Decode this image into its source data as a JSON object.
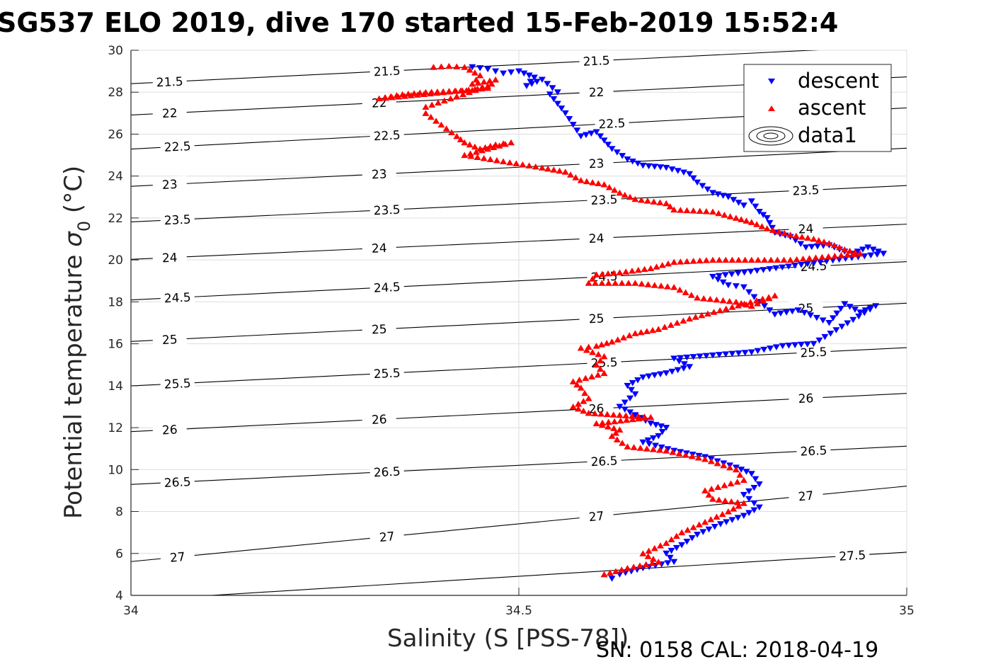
{
  "chart_data": {
    "type": "scatter",
    "title": "SG537 ELO 2019, dive 170 started 15-Feb-2019 15:52:4",
    "xlabel": "Salinity (S [PSS-78])",
    "ylabel_main": "Potential temperature ",
    "ylabel_sigma": "σ",
    "ylabel_sub": "0",
    "ylabel_unit": " (°C)",
    "footer": "SN: 0158  CAL: 2018-04-19",
    "xlim": [
      34,
      35
    ],
    "ylim": [
      4,
      30
    ],
    "grid": true,
    "xticks": [
      34,
      34.5,
      35
    ],
    "xtick_labels": [
      "34",
      "34.5",
      "35"
    ],
    "yticks": [
      4,
      6,
      8,
      10,
      12,
      14,
      16,
      18,
      20,
      22,
      24,
      26,
      28,
      30
    ],
    "ytick_labels": [
      "4",
      "6",
      "8",
      "10",
      "12",
      "14",
      "16",
      "18",
      "20",
      "22",
      "24",
      "26",
      "28",
      "30"
    ],
    "legend": {
      "position": "top-right",
      "entries": [
        {
          "label": "descent",
          "marker": "triangle-down",
          "color": "#0000ff"
        },
        {
          "label": "ascent",
          "marker": "triangle-up",
          "color": "#ff0000"
        },
        {
          "label": "data1",
          "marker": "contour",
          "color": "#000000"
        }
      ]
    },
    "density_contours": {
      "levels": [
        21.5,
        22,
        22.5,
        23,
        23.5,
        24,
        24.5,
        25,
        25.5,
        26,
        26.5,
        27,
        27.5
      ],
      "labels": [
        "21.5",
        "22",
        "22.5",
        "23",
        "23.5",
        "24",
        "24.5",
        "25",
        "25.5",
        "26",
        "26.5",
        "27",
        "27.5"
      ],
      "label_positions": [
        {
          "level": "21.5",
          "at": [
            [
              34.05,
              28.5
            ],
            [
              34.33,
              29.0
            ],
            [
              34.6,
              29.5
            ]
          ]
        },
        {
          "level": "22",
          "at": [
            [
              34.05,
              27.0
            ],
            [
              34.32,
              27.5
            ],
            [
              34.6,
              28.0
            ]
          ]
        },
        {
          "level": "22.5",
          "at": [
            [
              34.06,
              25.4
            ],
            [
              34.33,
              25.95
            ],
            [
              34.62,
              26.5
            ]
          ]
        },
        {
          "level": "23",
          "at": [
            [
              34.05,
              23.6
            ],
            [
              34.32,
              24.1
            ],
            [
              34.6,
              24.6
            ]
          ]
        },
        {
          "level": "23.5",
          "at": [
            [
              34.06,
              21.9
            ],
            [
              34.33,
              22.4
            ],
            [
              34.61,
              22.9
            ],
            [
              34.87,
              23.3
            ]
          ]
        },
        {
          "level": "24",
          "at": [
            [
              34.05,
              20.1
            ],
            [
              34.32,
              20.6
            ],
            [
              34.6,
              21.0
            ],
            [
              34.87,
              21.5
            ]
          ]
        },
        {
          "level": "24.5",
          "at": [
            [
              34.06,
              18.2
            ],
            [
              34.33,
              18.7
            ],
            [
              34.61,
              19.2
            ],
            [
              34.88,
              19.7
            ]
          ]
        },
        {
          "level": "25",
          "at": [
            [
              34.05,
              16.2
            ],
            [
              34.32,
              16.7
            ],
            [
              34.6,
              17.2
            ],
            [
              34.87,
              17.7
            ]
          ]
        },
        {
          "level": "25.5",
          "at": [
            [
              34.06,
              14.1
            ],
            [
              34.33,
              14.6
            ],
            [
              34.61,
              15.1
            ],
            [
              34.88,
              15.6
            ]
          ]
        },
        {
          "level": "26",
          "at": [
            [
              34.05,
              11.9
            ],
            [
              34.32,
              12.4
            ],
            [
              34.6,
              12.9
            ],
            [
              34.87,
              13.4
            ]
          ]
        },
        {
          "level": "26.5",
          "at": [
            [
              34.06,
              9.4
            ],
            [
              34.33,
              9.9
            ],
            [
              34.61,
              10.4
            ],
            [
              34.88,
              10.9
            ]
          ]
        },
        {
          "level": "27",
          "at": [
            [
              34.06,
              4.4
            ],
            [
              34.33,
              6.8
            ],
            [
              34.6,
              7.3
            ],
            [
              34.87,
              8.1
            ]
          ]
        },
        {
          "level": "27.5",
          "at": [
            [
              34.93,
              5.9
            ]
          ]
        }
      ]
    },
    "series": [
      {
        "name": "descent",
        "marker": "triangle-down",
        "color": "#0000ff",
        "points": [
          [
            34.44,
            29.2
          ],
          [
            34.46,
            29.1
          ],
          [
            34.47,
            29.0
          ],
          [
            34.48,
            28.9
          ],
          [
            34.5,
            29.0
          ],
          [
            34.52,
            28.7
          ],
          [
            34.51,
            28.3
          ],
          [
            34.53,
            28.6
          ],
          [
            34.55,
            28.0
          ],
          [
            34.54,
            27.9
          ],
          [
            34.56,
            27.0
          ],
          [
            34.58,
            25.9
          ],
          [
            34.6,
            26.1
          ],
          [
            34.62,
            25.3
          ],
          [
            34.64,
            24.8
          ],
          [
            34.66,
            24.5
          ],
          [
            34.69,
            24.4
          ],
          [
            34.72,
            24.1
          ],
          [
            34.73,
            23.7
          ],
          [
            34.75,
            23.2
          ],
          [
            34.77,
            23.0
          ],
          [
            34.79,
            22.6
          ],
          [
            34.8,
            22.8
          ],
          [
            34.81,
            22.3
          ],
          [
            34.82,
            22.0
          ],
          [
            34.83,
            21.3
          ],
          [
            34.85,
            21.1
          ],
          [
            34.87,
            20.6
          ],
          [
            34.9,
            20.7
          ],
          [
            34.92,
            20.4
          ],
          [
            34.93,
            20.3
          ],
          [
            34.95,
            20.6
          ],
          [
            34.97,
            20.3
          ],
          [
            34.75,
            19.2
          ],
          [
            34.77,
            18.8
          ],
          [
            34.79,
            18.7
          ],
          [
            34.81,
            18.0
          ],
          [
            34.83,
            17.4
          ],
          [
            34.86,
            17.6
          ],
          [
            34.9,
            17.0
          ],
          [
            34.92,
            17.9
          ],
          [
            34.94,
            17.5
          ],
          [
            34.96,
            17.8
          ],
          [
            34.88,
            16.0
          ],
          [
            34.84,
            15.9
          ],
          [
            34.8,
            15.6
          ],
          [
            34.7,
            15.3
          ],
          [
            34.72,
            14.9
          ],
          [
            34.69,
            14.6
          ],
          [
            34.66,
            14.4
          ],
          [
            34.64,
            14.0
          ],
          [
            34.65,
            13.6
          ],
          [
            34.63,
            13.0
          ],
          [
            34.65,
            12.6
          ],
          [
            34.67,
            12.2
          ],
          [
            34.69,
            12.0
          ],
          [
            34.68,
            11.6
          ],
          [
            34.66,
            11.3
          ],
          [
            34.7,
            10.9
          ],
          [
            34.74,
            10.6
          ],
          [
            34.78,
            10.1
          ],
          [
            34.8,
            9.8
          ],
          [
            34.81,
            9.3
          ],
          [
            34.79,
            8.8
          ],
          [
            34.81,
            8.2
          ],
          [
            34.79,
            7.8
          ],
          [
            34.76,
            7.4
          ],
          [
            34.73,
            6.9
          ],
          [
            34.71,
            6.4
          ],
          [
            34.69,
            6.0
          ],
          [
            34.7,
            5.6
          ],
          [
            34.66,
            5.3
          ],
          [
            34.63,
            5.0
          ],
          [
            34.62,
            4.8
          ]
        ]
      },
      {
        "name": "ascent",
        "marker": "triangle-up",
        "color": "#ff0000",
        "points": [
          [
            34.39,
            29.2
          ],
          [
            34.41,
            29.25
          ],
          [
            34.43,
            29.2
          ],
          [
            34.45,
            28.8
          ],
          [
            34.44,
            28.4
          ],
          [
            34.47,
            28.6
          ],
          [
            34.46,
            28.2
          ],
          [
            34.32,
            27.7
          ],
          [
            34.35,
            27.9
          ],
          [
            34.38,
            28.0
          ],
          [
            34.41,
            28.05
          ],
          [
            34.44,
            28.1
          ],
          [
            34.46,
            28.3
          ],
          [
            34.38,
            27.3
          ],
          [
            34.38,
            27.0
          ],
          [
            34.42,
            25.9
          ],
          [
            34.43,
            25.6
          ],
          [
            34.45,
            25.3
          ],
          [
            34.47,
            25.5
          ],
          [
            34.49,
            25.6
          ],
          [
            34.43,
            25.0
          ],
          [
            34.53,
            24.4
          ],
          [
            34.56,
            24.2
          ],
          [
            34.58,
            23.8
          ],
          [
            34.61,
            23.6
          ],
          [
            34.63,
            23.2
          ],
          [
            34.65,
            22.9
          ],
          [
            34.69,
            22.7
          ],
          [
            34.7,
            22.4
          ],
          [
            34.75,
            22.3
          ],
          [
            34.78,
            22.0
          ],
          [
            34.8,
            21.8
          ],
          [
            34.82,
            21.5
          ],
          [
            34.85,
            21.2
          ],
          [
            34.88,
            21.0
          ],
          [
            34.9,
            20.8
          ],
          [
            34.92,
            20.5
          ],
          [
            34.94,
            20.3
          ],
          [
            34.85,
            20.0
          ],
          [
            34.8,
            20.0
          ],
          [
            34.75,
            20.0
          ],
          [
            34.7,
            19.9
          ],
          [
            34.67,
            19.6
          ],
          [
            34.63,
            19.4
          ],
          [
            34.6,
            19.3
          ],
          [
            34.59,
            18.9
          ],
          [
            34.65,
            18.9
          ],
          [
            34.7,
            18.7
          ],
          [
            34.73,
            18.2
          ],
          [
            34.78,
            18.0
          ],
          [
            34.8,
            17.8
          ],
          [
            34.83,
            18.3
          ],
          [
            34.72,
            17.2
          ],
          [
            34.68,
            16.7
          ],
          [
            34.65,
            16.5
          ],
          [
            34.62,
            16.1
          ],
          [
            34.6,
            15.9
          ],
          [
            34.58,
            15.8
          ],
          [
            34.61,
            15.4
          ],
          [
            34.6,
            15.0
          ],
          [
            34.61,
            14.6
          ],
          [
            34.57,
            14.2
          ],
          [
            34.58,
            13.9
          ],
          [
            34.59,
            13.4
          ],
          [
            34.57,
            13.0
          ],
          [
            34.59,
            12.7
          ],
          [
            34.63,
            12.6
          ],
          [
            34.67,
            12.5
          ],
          [
            34.6,
            12.2
          ],
          [
            34.63,
            11.9
          ],
          [
            34.62,
            11.6
          ],
          [
            34.64,
            11.1
          ],
          [
            34.69,
            10.9
          ],
          [
            34.74,
            10.5
          ],
          [
            34.78,
            10.0
          ],
          [
            34.79,
            9.5
          ],
          [
            34.74,
            9.0
          ],
          [
            34.75,
            8.6
          ],
          [
            34.79,
            8.4
          ],
          [
            34.77,
            8.0
          ],
          [
            34.74,
            7.5
          ],
          [
            34.71,
            7.0
          ],
          [
            34.69,
            6.5
          ],
          [
            34.66,
            6.0
          ],
          [
            34.68,
            5.6
          ],
          [
            34.64,
            5.3
          ],
          [
            34.61,
            5.0
          ]
        ]
      }
    ]
  }
}
